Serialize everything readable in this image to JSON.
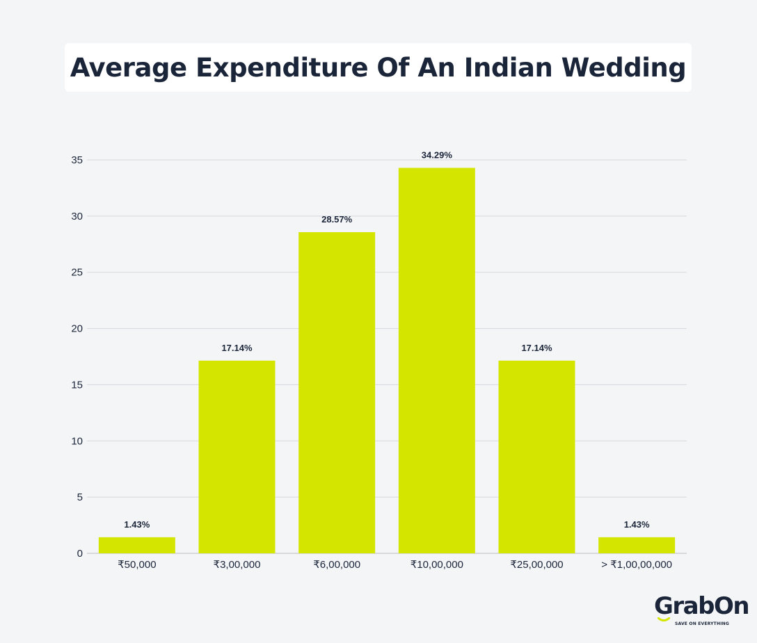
{
  "title": "Average Expenditure Of An Indian Wedding",
  "colors": {
    "background": "#f4f5f7",
    "bar": "#d4e600",
    "title": "#1b2539",
    "grid": "#d5d8dc"
  },
  "logo": {
    "brand": "GrabOn",
    "tagline": "SAVE ON EVERYTHING",
    "accent": "#d4e600"
  },
  "chart_data": {
    "type": "bar",
    "categories": [
      "₹50,000",
      "₹3,00,000",
      "₹6,00,000",
      "₹10,00,000",
      "₹25,00,000",
      "> ₹1,00,00,000"
    ],
    "values": [
      1.43,
      17.14,
      28.57,
      34.29,
      17.14,
      1.43
    ],
    "data_labels": [
      "1.43%",
      "17.14%",
      "28.57%",
      "34.29%",
      "17.14%",
      "1.43%"
    ],
    "ylim": [
      0,
      35
    ],
    "yticks": [
      0,
      5,
      10,
      15,
      20,
      25,
      30,
      35
    ],
    "grid": true,
    "legend": "none",
    "xlabel": "",
    "ylabel": ""
  }
}
